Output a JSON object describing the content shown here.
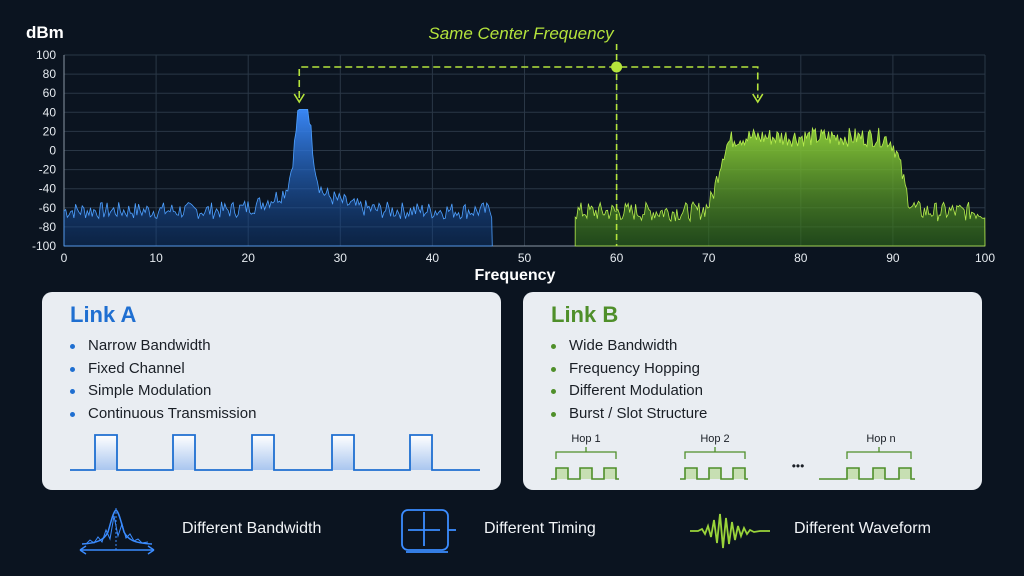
{
  "chart_data": {
    "type": "area",
    "title": "Same Center Frequency",
    "xlabel": "Frequency",
    "ylabel": "dBm",
    "xlim": [
      0,
      100
    ],
    "ylim": [
      -100,
      100
    ],
    "x_ticks": [
      0,
      10,
      20,
      30,
      40,
      50,
      60,
      70,
      80,
      90,
      100
    ],
    "y_ticks": [
      100,
      80,
      60,
      40,
      20,
      0,
      -20,
      -40,
      -60,
      -80,
      -100
    ],
    "grid": true,
    "center_frequency": 60,
    "series": [
      {
        "name": "Link A",
        "color": "#2f86ff",
        "x_range": [
          0,
          46.5
        ],
        "noise_floor": -68,
        "peak_x": 26,
        "peak_y": 43
      },
      {
        "name": "Link B",
        "color": "#9ad43a",
        "x_range": [
          55.5,
          100
        ],
        "noise_floor": -68,
        "plateau_x": [
          71,
          91
        ],
        "plateau_y": 10
      }
    ],
    "annotation_arrows_x": [
      25,
      75
    ]
  },
  "link_a": {
    "title": "Link A",
    "bullets": [
      "Narrow Bandwidth",
      "Fixed Channel",
      "Simple Modulation",
      "Continuous Transmission"
    ]
  },
  "link_b": {
    "title": "Link B",
    "bullets": [
      "Wide Bandwidth",
      "Frequency Hopping",
      "Different Modulation",
      "Burst / Slot Structure"
    ],
    "hops": [
      "Hop 1",
      "Hop 2",
      "Hop n"
    ],
    "ellipsis": "•••"
  },
  "legend": [
    {
      "icon": "bandwidth-icon",
      "label": "Different Bandwidth"
    },
    {
      "icon": "timing-icon",
      "label": "Different Timing"
    },
    {
      "icon": "waveform-icon",
      "label": "Different Waveform"
    }
  ],
  "colors": {
    "link_a": "#1f6fd1",
    "link_b": "#4f8f2a",
    "accent": "#b5e43c"
  }
}
